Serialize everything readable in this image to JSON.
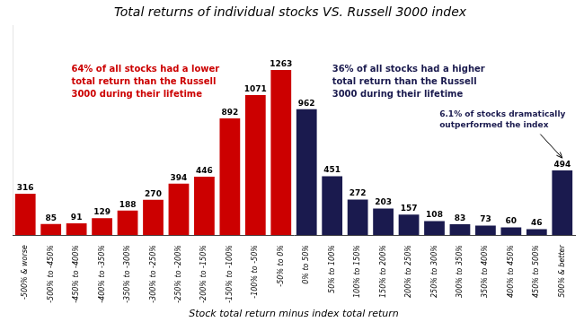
{
  "chart_data": {
    "type": "bar",
    "title": "Total returns of individual stocks VS. Russell 3000 index",
    "xlabel": "Stock total return minus index total return",
    "categories": [
      "-500% & worse",
      "-500% to -450%",
      "-450% to -400%",
      "-400% to -350%",
      "-350% to -300%",
      "-300% to -250%",
      "-250% to -200%",
      "-200% to -150%",
      "-150% to -100%",
      "-100% to -50%",
      "-50% to 0%",
      "0% to 50%",
      "50% to 100%",
      "100% to 150%",
      "150% to 200%",
      "200% to 250%",
      "250% to 300%",
      "300% to 350%",
      "350% to 400%",
      "400% to 450%",
      "450% to 500%",
      "500% & better"
    ],
    "values": [
      316,
      85,
      91,
      129,
      188,
      270,
      394,
      446,
      892,
      1071,
      1263,
      962,
      451,
      272,
      203,
      157,
      108,
      83,
      73,
      60,
      46,
      494
    ],
    "colors": [
      "#cc0000",
      "#cc0000",
      "#cc0000",
      "#cc0000",
      "#cc0000",
      "#cc0000",
      "#cc0000",
      "#cc0000",
      "#cc0000",
      "#cc0000",
      "#cc0000",
      "#1a1a4e",
      "#1a1a4e",
      "#1a1a4e",
      "#1a1a4e",
      "#1a1a4e",
      "#1a1a4e",
      "#1a1a4e",
      "#1a1a4e",
      "#1a1a4e",
      "#1a1a4e",
      "#1a1a4e"
    ],
    "ylim": [
      0,
      1600
    ],
    "data_labels": true,
    "tick_labels": "x",
    "grid": false,
    "annotations": [
      {
        "text": "64% of all stocks had a lower\ntotal return than the Russell\n3000 during their lifetime",
        "color": "#cc0000"
      },
      {
        "text": "36% of all stocks had a higher\ntotal return than the Russell\n3000 during their lifetime",
        "color": "#1a1a4e"
      },
      {
        "text": "6.1% of stocks dramatically\noutperformed the index",
        "color": "#1a1a4e"
      }
    ]
  }
}
